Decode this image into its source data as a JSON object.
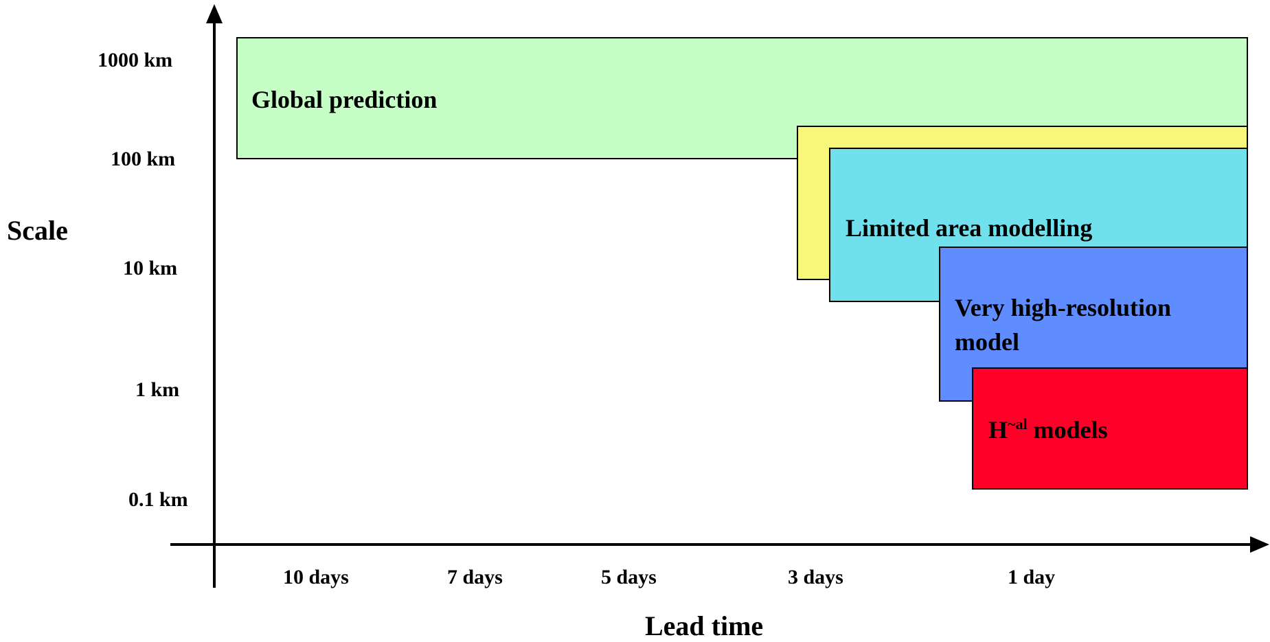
{
  "y_axis": {
    "title": "Scale",
    "ticks": [
      "1000 km",
      "100 km",
      "10 km",
      "1 km",
      "0.1 km"
    ]
  },
  "x_axis": {
    "title": "Lead time",
    "ticks": [
      "10 days",
      "7 days",
      "5 days",
      "3 days",
      "1 day"
    ]
  },
  "regions": {
    "global": {
      "label": "Global prediction",
      "color": "#c6ffc6"
    },
    "yellow": {
      "color": "#f7f77a"
    },
    "limited_area": {
      "label": "Limited area modelling",
      "color": "#70e1ec"
    },
    "very_high_res": {
      "label_line1": "Very high-resolution",
      "label_line2": "model",
      "color": "#5f8cff"
    },
    "h_models": {
      "label_prefix": "H",
      "label_sup": "~al",
      "label_suffix": " models",
      "color": "#ff0028"
    }
  }
}
